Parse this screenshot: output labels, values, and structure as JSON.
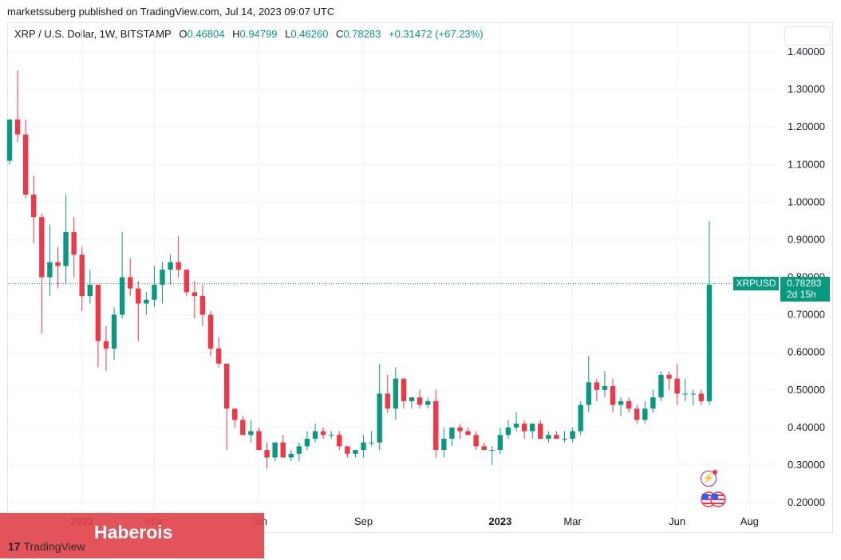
{
  "header": "marketssuberg published on TradingView.com, Jul 14, 2023 09:07 UTC",
  "symbol": {
    "name": "XRP / U.S. Dollar, 1W, BITSTAMP",
    "o_label": "O",
    "o": "0.46804",
    "h_label": "H",
    "h": "0.94799",
    "l_label": "L",
    "l": "0.46260",
    "c_label": "C",
    "c": "0.78283",
    "change": "+0.31472 (+67.23%)"
  },
  "price_tag": {
    "symbol": "XRPUSD",
    "price": "0.78283",
    "countdown": "2d 15h"
  },
  "watermark": {
    "text": "Haberois",
    "logo_text": "TradingView",
    "logo_mark": "17"
  },
  "colors": {
    "up": "#089981",
    "down": "#f23645",
    "grid": "#f0f3fa",
    "axis_text": "#131722"
  },
  "chart_data": {
    "type": "candlestick",
    "interval": "1W",
    "ylim": [
      0.18,
      1.44
    ],
    "y_ticks": [
      "1.40000",
      "1.30000",
      "1.20000",
      "1.10000",
      "1.00000",
      "0.90000",
      "0.80000",
      "0.70000",
      "0.60000",
      "0.50000",
      "0.40000",
      "0.30000",
      "0.20000"
    ],
    "x_ticks": [
      {
        "label": "2022",
        "bold": true,
        "week": 9
      },
      {
        "label": "Mar",
        "bold": false,
        "week": 18
      },
      {
        "label": "Jun",
        "bold": false,
        "week": 31
      },
      {
        "label": "Sep",
        "bold": false,
        "week": 44
      },
      {
        "label": "2023",
        "bold": true,
        "week": 61
      },
      {
        "label": "Mar",
        "bold": false,
        "week": 70
      },
      {
        "label": "Jun",
        "bold": false,
        "week": 83
      },
      {
        "label": "Aug",
        "bold": false,
        "week": 92
      }
    ],
    "last_price": 0.78283,
    "candles": [
      [
        1.11,
        1.22,
        1.1,
        1.22
      ],
      [
        1.22,
        1.35,
        1.16,
        1.18
      ],
      [
        1.18,
        1.22,
        1.01,
        1.02
      ],
      [
        1.02,
        1.07,
        0.89,
        0.96
      ],
      [
        0.96,
        0.97,
        0.65,
        0.8
      ],
      [
        0.8,
        0.94,
        0.75,
        0.84
      ],
      [
        0.84,
        0.88,
        0.77,
        0.83
      ],
      [
        0.83,
        1.02,
        0.78,
        0.92
      ],
      [
        0.92,
        0.96,
        0.8,
        0.86
      ],
      [
        0.86,
        0.88,
        0.71,
        0.75
      ],
      [
        0.75,
        0.82,
        0.73,
        0.78
      ],
      [
        0.78,
        0.78,
        0.56,
        0.63
      ],
      [
        0.63,
        0.67,
        0.55,
        0.61
      ],
      [
        0.61,
        0.72,
        0.58,
        0.7
      ],
      [
        0.7,
        0.92,
        0.69,
        0.8
      ],
      [
        0.8,
        0.85,
        0.75,
        0.77
      ],
      [
        0.77,
        0.79,
        0.63,
        0.73
      ],
      [
        0.73,
        0.76,
        0.7,
        0.74
      ],
      [
        0.74,
        0.83,
        0.72,
        0.78
      ],
      [
        0.78,
        0.84,
        0.73,
        0.82
      ],
      [
        0.82,
        0.86,
        0.78,
        0.84
      ],
      [
        0.84,
        0.91,
        0.8,
        0.82
      ],
      [
        0.82,
        0.82,
        0.75,
        0.76
      ],
      [
        0.76,
        0.79,
        0.69,
        0.75
      ],
      [
        0.75,
        0.78,
        0.67,
        0.7
      ],
      [
        0.7,
        0.71,
        0.59,
        0.61
      ],
      [
        0.61,
        0.64,
        0.56,
        0.57
      ],
      [
        0.57,
        0.57,
        0.34,
        0.45
      ],
      [
        0.45,
        0.45,
        0.4,
        0.42
      ],
      [
        0.42,
        0.43,
        0.38,
        0.38
      ],
      [
        0.38,
        0.42,
        0.36,
        0.39
      ],
      [
        0.39,
        0.4,
        0.34,
        0.34
      ],
      [
        0.34,
        0.36,
        0.29,
        0.32
      ],
      [
        0.32,
        0.36,
        0.31,
        0.36
      ],
      [
        0.36,
        0.38,
        0.32,
        0.32
      ],
      [
        0.32,
        0.34,
        0.31,
        0.33
      ],
      [
        0.33,
        0.36,
        0.31,
        0.35
      ],
      [
        0.35,
        0.39,
        0.34,
        0.37
      ],
      [
        0.37,
        0.41,
        0.36,
        0.39
      ],
      [
        0.39,
        0.4,
        0.37,
        0.38
      ],
      [
        0.38,
        0.39,
        0.37,
        0.38
      ],
      [
        0.38,
        0.39,
        0.34,
        0.35
      ],
      [
        0.35,
        0.35,
        0.32,
        0.33
      ],
      [
        0.33,
        0.34,
        0.32,
        0.34
      ],
      [
        0.34,
        0.38,
        0.32,
        0.36
      ],
      [
        0.36,
        0.39,
        0.35,
        0.36
      ],
      [
        0.36,
        0.57,
        0.34,
        0.49
      ],
      [
        0.49,
        0.54,
        0.44,
        0.45
      ],
      [
        0.45,
        0.56,
        0.42,
        0.53
      ],
      [
        0.53,
        0.53,
        0.45,
        0.47
      ],
      [
        0.47,
        0.48,
        0.45,
        0.48
      ],
      [
        0.48,
        0.5,
        0.45,
        0.46
      ],
      [
        0.46,
        0.48,
        0.45,
        0.47
      ],
      [
        0.47,
        0.5,
        0.32,
        0.34
      ],
      [
        0.34,
        0.4,
        0.32,
        0.37
      ],
      [
        0.37,
        0.4,
        0.35,
        0.4
      ],
      [
        0.4,
        0.41,
        0.37,
        0.39
      ],
      [
        0.39,
        0.4,
        0.38,
        0.38
      ],
      [
        0.38,
        0.39,
        0.34,
        0.35
      ],
      [
        0.35,
        0.36,
        0.34,
        0.34
      ],
      [
        0.34,
        0.35,
        0.3,
        0.34
      ],
      [
        0.34,
        0.4,
        0.33,
        0.38
      ],
      [
        0.38,
        0.42,
        0.37,
        0.4
      ],
      [
        0.4,
        0.44,
        0.39,
        0.41
      ],
      [
        0.41,
        0.42,
        0.37,
        0.39
      ],
      [
        0.39,
        0.41,
        0.37,
        0.41
      ],
      [
        0.41,
        0.42,
        0.37,
        0.37
      ],
      [
        0.37,
        0.39,
        0.36,
        0.38
      ],
      [
        0.38,
        0.39,
        0.37,
        0.37
      ],
      [
        0.37,
        0.39,
        0.36,
        0.37
      ],
      [
        0.37,
        0.4,
        0.36,
        0.39
      ],
      [
        0.39,
        0.47,
        0.38,
        0.46
      ],
      [
        0.46,
        0.59,
        0.44,
        0.52
      ],
      [
        0.52,
        0.53,
        0.47,
        0.5
      ],
      [
        0.5,
        0.55,
        0.48,
        0.51
      ],
      [
        0.51,
        0.53,
        0.44,
        0.46
      ],
      [
        0.46,
        0.48,
        0.43,
        0.47
      ],
      [
        0.47,
        0.48,
        0.44,
        0.45
      ],
      [
        0.45,
        0.46,
        0.41,
        0.42
      ],
      [
        0.42,
        0.47,
        0.41,
        0.45
      ],
      [
        0.45,
        0.5,
        0.44,
        0.48
      ],
      [
        0.48,
        0.55,
        0.47,
        0.54
      ],
      [
        0.54,
        0.55,
        0.5,
        0.53
      ],
      [
        0.53,
        0.57,
        0.46,
        0.49
      ],
      [
        0.49,
        0.53,
        0.47,
        0.49
      ],
      [
        0.49,
        0.5,
        0.46,
        0.49
      ],
      [
        0.49,
        0.5,
        0.46,
        0.47
      ],
      [
        0.47,
        0.95,
        0.46,
        0.78
      ]
    ]
  }
}
